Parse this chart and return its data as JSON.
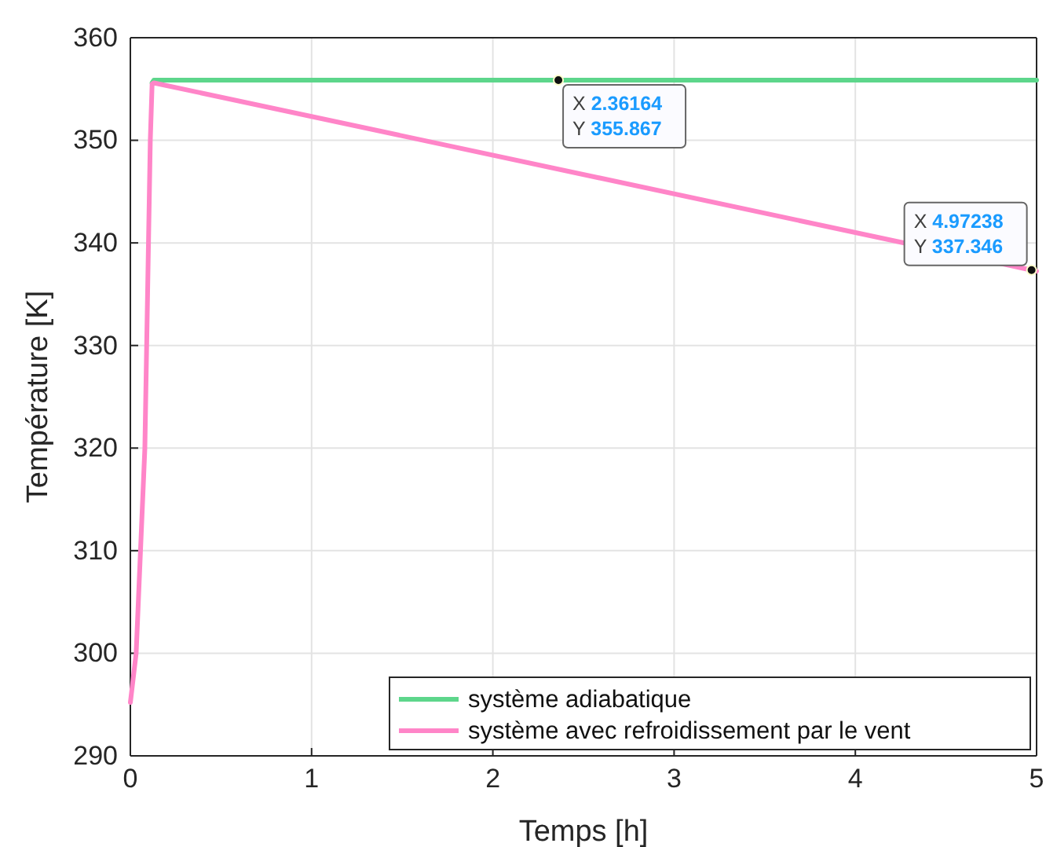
{
  "chart_data": {
    "type": "line",
    "xlabel": "Temps [h]",
    "ylabel": "Température [K]",
    "xlim": [
      0,
      5
    ],
    "xticks": [
      0,
      1,
      2,
      3,
      4,
      5
    ],
    "ylim": [
      290,
      360
    ],
    "yticks": [
      290,
      300,
      310,
      320,
      330,
      340,
      350,
      360
    ],
    "grid": true,
    "legend": "bottom right",
    "line_style": "solid",
    "marker": "none",
    "series": [
      {
        "name": "système adiabatique",
        "color": "#5dd68b",
        "x": [
          0.12,
          0.13,
          2.36164,
          5
        ],
        "values": [
          355.6,
          355.867,
          355.867,
          355.867
        ]
      },
      {
        "name": "système avec refroidissement par le vent",
        "color": "#ff85c8",
        "x": [
          0,
          0.032,
          0.08,
          0.11,
          0.12,
          0.13,
          4.97238,
          5
        ],
        "values": [
          295.2,
          300,
          320,
          350,
          355.5,
          355.6,
          337.346,
          337.24
        ]
      }
    ],
    "annotations": [
      {
        "text": "X 2.36164\nY 355.867",
        "x": 2.36164,
        "y": 355.867
      },
      {
        "text": "X 4.97238\nY 337.346",
        "x": 4.97238,
        "y": 337.346
      }
    ]
  }
}
